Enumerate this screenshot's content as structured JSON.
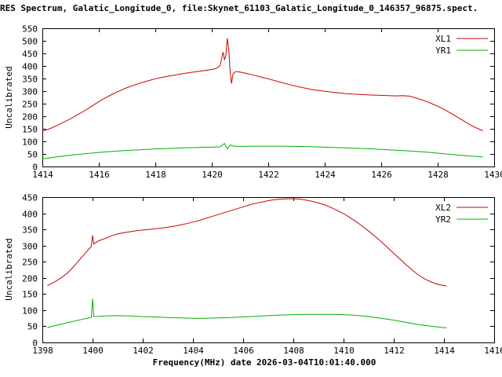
{
  "title": "RES Spectrum, Galatic_Longitude_0, file:Skynet_61103_Galatic_Longitude_0_146357_96875.spect.",
  "xlabel": "Frequency(MHz) date 2026-03-04T10:01:40.000",
  "ylabel_top": "Uncalibrated",
  "ylabel_bottom": "Uncalibrated",
  "colors": {
    "red": "#cc0000",
    "green": "#00b000",
    "axis": "#000000",
    "background": "#ffffff"
  },
  "chart_data": [
    {
      "type": "line",
      "ylabel": "Uncalibrated",
      "xlim": [
        1414,
        1430
      ],
      "ylim": [
        0,
        550
      ],
      "xticks": [
        1414,
        1416,
        1418,
        1420,
        1422,
        1424,
        1426,
        1428,
        1430
      ],
      "yticks": [
        0,
        50,
        100,
        150,
        200,
        250,
        300,
        350,
        400,
        450,
        500,
        550
      ],
      "legend_position": "top-right",
      "grid": false,
      "series": [
        {
          "name": "XL1",
          "color": "#cc0000",
          "points": [
            [
              1414.0,
              140
            ],
            [
              1414.25,
              150
            ],
            [
              1414.5,
              162
            ],
            [
              1414.75,
              176
            ],
            [
              1415.0,
              190
            ],
            [
              1415.25,
              206
            ],
            [
              1415.5,
              222
            ],
            [
              1415.75,
              240
            ],
            [
              1416.0,
              258
            ],
            [
              1416.25,
              274
            ],
            [
              1416.5,
              289
            ],
            [
              1416.75,
              302
            ],
            [
              1417.0,
              314
            ],
            [
              1417.25,
              324
            ],
            [
              1417.5,
              333
            ],
            [
              1417.75,
              341
            ],
            [
              1418.0,
              349
            ],
            [
              1418.25,
              355
            ],
            [
              1418.5,
              360
            ],
            [
              1418.75,
              365
            ],
            [
              1419.0,
              370
            ],
            [
              1419.25,
              374
            ],
            [
              1419.5,
              378
            ],
            [
              1419.75,
              382
            ],
            [
              1420.0,
              386
            ],
            [
              1420.1,
              388
            ],
            [
              1420.2,
              393
            ],
            [
              1420.3,
              402
            ],
            [
              1420.35,
              432
            ],
            [
              1420.4,
              455
            ],
            [
              1420.45,
              424
            ],
            [
              1420.5,
              442
            ],
            [
              1420.55,
              510
            ],
            [
              1420.6,
              468
            ],
            [
              1420.65,
              378
            ],
            [
              1420.7,
              330
            ],
            [
              1420.75,
              368
            ],
            [
              1420.85,
              378
            ],
            [
              1421.0,
              376
            ],
            [
              1421.25,
              370
            ],
            [
              1421.5,
              363
            ],
            [
              1421.75,
              356
            ],
            [
              1422.0,
              349
            ],
            [
              1422.25,
              341
            ],
            [
              1422.5,
              333
            ],
            [
              1422.75,
              326
            ],
            [
              1423.0,
              319
            ],
            [
              1423.25,
              313
            ],
            [
              1423.5,
              307
            ],
            [
              1423.75,
              303
            ],
            [
              1424.0,
              299
            ],
            [
              1424.25,
              296
            ],
            [
              1424.5,
              293
            ],
            [
              1424.75,
              290
            ],
            [
              1425.0,
              288
            ],
            [
              1425.25,
              287
            ],
            [
              1425.5,
              285
            ],
            [
              1425.75,
              284
            ],
            [
              1426.0,
              283
            ],
            [
              1426.25,
              282
            ],
            [
              1426.5,
              281
            ],
            [
              1426.75,
              282
            ],
            [
              1427.0,
              280
            ],
            [
              1427.25,
              272
            ],
            [
              1427.5,
              263
            ],
            [
              1427.75,
              252
            ],
            [
              1428.0,
              240
            ],
            [
              1428.25,
              226
            ],
            [
              1428.5,
              210
            ],
            [
              1428.75,
              193
            ],
            [
              1429.0,
              176
            ],
            [
              1429.25,
              160
            ],
            [
              1429.5,
              147
            ],
            [
              1429.6,
              142
            ]
          ]
        },
        {
          "name": "YR1",
          "color": "#00b000",
          "points": [
            [
              1414.0,
              30
            ],
            [
              1414.5,
              38
            ],
            [
              1415.0,
              45
            ],
            [
              1415.5,
              51
            ],
            [
              1416.0,
              56
            ],
            [
              1416.5,
              60
            ],
            [
              1417.0,
              64
            ],
            [
              1417.5,
              67
            ],
            [
              1418.0,
              70
            ],
            [
              1418.5,
              72
            ],
            [
              1419.0,
              74
            ],
            [
              1419.5,
              76
            ],
            [
              1420.0,
              77
            ],
            [
              1420.3,
              78
            ],
            [
              1420.45,
              92
            ],
            [
              1420.55,
              70
            ],
            [
              1420.65,
              86
            ],
            [
              1420.8,
              80
            ],
            [
              1421.0,
              80
            ],
            [
              1421.5,
              81
            ],
            [
              1422.0,
              81
            ],
            [
              1422.5,
              81
            ],
            [
              1423.0,
              80
            ],
            [
              1423.5,
              79
            ],
            [
              1424.0,
              77
            ],
            [
              1424.5,
              75
            ],
            [
              1425.0,
              73
            ],
            [
              1425.5,
              71
            ],
            [
              1426.0,
              68
            ],
            [
              1426.5,
              65
            ],
            [
              1427.0,
              62
            ],
            [
              1427.5,
              58
            ],
            [
              1428.0,
              53
            ],
            [
              1428.5,
              48
            ],
            [
              1429.0,
              43
            ],
            [
              1429.5,
              39
            ],
            [
              1429.6,
              38
            ]
          ]
        }
      ]
    },
    {
      "type": "line",
      "ylabel": "Uncalibrated",
      "xlim": [
        1398,
        1416
      ],
      "ylim": [
        0,
        450
      ],
      "xticks": [
        1398,
        1400,
        1402,
        1404,
        1406,
        1408,
        1410,
        1412,
        1414,
        1416
      ],
      "yticks": [
        0,
        50,
        100,
        150,
        200,
        250,
        300,
        350,
        400,
        450
      ],
      "legend_position": "top-right",
      "grid": false,
      "series": [
        {
          "name": "XL2",
          "color": "#cc0000",
          "points": [
            [
              1398.2,
              176
            ],
            [
              1398.5,
              188
            ],
            [
              1398.75,
              200
            ],
            [
              1399.0,
              215
            ],
            [
              1399.25,
              235
            ],
            [
              1399.5,
              258
            ],
            [
              1399.75,
              280
            ],
            [
              1399.9,
              293
            ],
            [
              1399.95,
              298
            ],
            [
              1400.0,
              332
            ],
            [
              1400.05,
              305
            ],
            [
              1400.25,
              315
            ],
            [
              1400.5,
              322
            ],
            [
              1400.75,
              330
            ],
            [
              1401.0,
              336
            ],
            [
              1401.25,
              340
            ],
            [
              1401.5,
              343
            ],
            [
              1401.75,
              346
            ],
            [
              1402.0,
              348
            ],
            [
              1402.25,
              350
            ],
            [
              1402.5,
              352
            ],
            [
              1402.75,
              354
            ],
            [
              1403.0,
              357
            ],
            [
              1403.25,
              360
            ],
            [
              1403.5,
              364
            ],
            [
              1403.75,
              368
            ],
            [
              1404.0,
              373
            ],
            [
              1404.25,
              378
            ],
            [
              1404.5,
              384
            ],
            [
              1404.75,
              390
            ],
            [
              1405.0,
              396
            ],
            [
              1405.25,
              402
            ],
            [
              1405.5,
              408
            ],
            [
              1405.75,
              414
            ],
            [
              1406.0,
              420
            ],
            [
              1406.25,
              426
            ],
            [
              1406.5,
              431
            ],
            [
              1406.75,
              435
            ],
            [
              1407.0,
              439
            ],
            [
              1407.25,
              442
            ],
            [
              1407.5,
              444
            ],
            [
              1407.75,
              445
            ],
            [
              1408.0,
              445
            ],
            [
              1408.25,
              444
            ],
            [
              1408.5,
              441
            ],
            [
              1408.75,
              437
            ],
            [
              1409.0,
              432
            ],
            [
              1409.25,
              426
            ],
            [
              1409.5,
              418
            ],
            [
              1409.75,
              409
            ],
            [
              1410.0,
              399
            ],
            [
              1410.25,
              387
            ],
            [
              1410.5,
              374
            ],
            [
              1410.75,
              360
            ],
            [
              1411.0,
              345
            ],
            [
              1411.25,
              329
            ],
            [
              1411.5,
              312
            ],
            [
              1411.75,
              294
            ],
            [
              1412.0,
              276
            ],
            [
              1412.25,
              258
            ],
            [
              1412.5,
              240
            ],
            [
              1412.75,
              223
            ],
            [
              1413.0,
              208
            ],
            [
              1413.25,
              196
            ],
            [
              1413.5,
              187
            ],
            [
              1413.75,
              180
            ],
            [
              1414.0,
              176
            ],
            [
              1414.1,
              175
            ]
          ]
        },
        {
          "name": "YR2",
          "color": "#00b000",
          "points": [
            [
              1398.2,
              46
            ],
            [
              1398.5,
              52
            ],
            [
              1399.0,
              61
            ],
            [
              1399.5,
              70
            ],
            [
              1399.9,
              77
            ],
            [
              1399.95,
              78
            ],
            [
              1400.0,
              135
            ],
            [
              1400.05,
              80
            ],
            [
              1400.25,
              81
            ],
            [
              1400.5,
              82
            ],
            [
              1401.0,
              83
            ],
            [
              1401.5,
              82
            ],
            [
              1402.0,
              80
            ],
            [
              1402.5,
              79
            ],
            [
              1403.0,
              77
            ],
            [
              1403.5,
              76
            ],
            [
              1404.0,
              75
            ],
            [
              1404.5,
              75
            ],
            [
              1405.0,
              76
            ],
            [
              1405.5,
              77
            ],
            [
              1406.0,
              79
            ],
            [
              1406.5,
              81
            ],
            [
              1407.0,
              83
            ],
            [
              1407.5,
              85
            ],
            [
              1408.0,
              86
            ],
            [
              1408.5,
              87
            ],
            [
              1409.0,
              87
            ],
            [
              1409.5,
              87
            ],
            [
              1410.0,
              86
            ],
            [
              1410.5,
              84
            ],
            [
              1411.0,
              80
            ],
            [
              1411.5,
              75
            ],
            [
              1412.0,
              69
            ],
            [
              1412.5,
              62
            ],
            [
              1413.0,
              55
            ],
            [
              1413.5,
              50
            ],
            [
              1414.0,
              46
            ],
            [
              1414.1,
              45
            ]
          ]
        }
      ]
    }
  ]
}
